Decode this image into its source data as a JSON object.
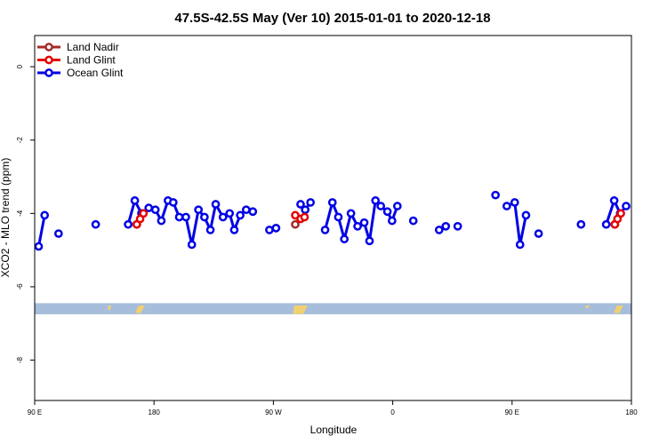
{
  "chart_data": {
    "type": "line",
    "title": "47.5S-42.5S May (Ver 10)   2015-01-01 to 2020-12-18",
    "xlabel": "Longitude",
    "ylabel": "XCO2 - MLO trend (ppm)",
    "xlim": [
      90,
      540
    ],
    "ylim": [
      -9.1,
      0.85
    ],
    "x_ticks": [
      {
        "value": 90,
        "label": "90 E"
      },
      {
        "value": 180,
        "label": "180"
      },
      {
        "value": 270,
        "label": "90 W"
      },
      {
        "value": 360,
        "label": "0"
      },
      {
        "value": 450,
        "label": "90 E"
      },
      {
        "value": 540,
        "label": "180"
      }
    ],
    "y_ticks": [
      {
        "value": 0,
        "label": "0"
      },
      {
        "value": -2,
        "label": "-2"
      },
      {
        "value": -4,
        "label": "-4"
      },
      {
        "value": -6,
        "label": "-6"
      },
      {
        "value": -8,
        "label": "-8"
      }
    ],
    "grid": false,
    "legend_position": "top-left",
    "land_band": {
      "y_range": [
        -6.45,
        -6.75
      ],
      "color": "#a6bddb",
      "land_color": "#f0d070"
    },
    "series": [
      {
        "name": "Land Nadir",
        "color": "#a52a2a",
        "segments": [
          [
            [
              167.0,
              -4.3
            ]
          ],
          [
            [
              286.5,
              -4.3
            ]
          ],
          [
            [
              527.5,
              -4.3
            ]
          ]
        ]
      },
      {
        "name": "Land Glint",
        "color": "#e60000",
        "segments": [
          [
            [
              167.0,
              -4.3
            ],
            [
              169.5,
              -4.15
            ],
            [
              172.0,
              -4.0
            ]
          ],
          [
            [
              286.5,
              -4.05
            ],
            [
              290.5,
              -4.15
            ],
            [
              293.5,
              -4.1
            ]
          ],
          [
            [
              527.5,
              -4.3
            ],
            [
              529.5,
              -4.15
            ],
            [
              532.0,
              -4.0
            ]
          ]
        ]
      },
      {
        "name": "Ocean Glint",
        "color": "#0000e6",
        "segments": [
          [
            [
              93.0,
              -4.9
            ],
            [
              97.5,
              -4.05
            ]
          ],
          [
            [
              108.0,
              -4.55
            ]
          ],
          [
            [
              136.0,
              -4.3
            ]
          ],
          [
            [
              160.5,
              -4.3
            ],
            [
              165.5,
              -3.65
            ],
            [
              170.5,
              -4.0
            ],
            [
              176.0,
              -3.85
            ],
            [
              181.0,
              -3.9
            ],
            [
              185.5,
              -4.2
            ],
            [
              190.5,
              -3.65
            ],
            [
              194.5,
              -3.7
            ],
            [
              199.0,
              -4.1
            ],
            [
              204.0,
              -4.1
            ],
            [
              208.5,
              -4.85
            ],
            [
              213.5,
              -3.9
            ],
            [
              218.0,
              -4.1
            ],
            [
              222.5,
              -4.45
            ],
            [
              226.5,
              -3.75
            ],
            [
              232.0,
              -4.1
            ],
            [
              237.0,
              -4.0
            ],
            [
              240.5,
              -4.45
            ],
            [
              245.0,
              -4.05
            ],
            [
              249.5,
              -3.9
            ],
            [
              254.5,
              -3.95
            ]
          ],
          [
            [
              267.0,
              -4.45
            ],
            [
              272.0,
              -4.4
            ]
          ],
          [
            [
              290.5,
              -3.75
            ],
            [
              294.0,
              -3.9
            ],
            [
              298.0,
              -3.7
            ]
          ],
          [
            [
              309.0,
              -4.45
            ],
            [
              314.5,
              -3.7
            ],
            [
              319.0,
              -4.1
            ],
            [
              323.5,
              -4.7
            ],
            [
              328.5,
              -4.0
            ],
            [
              333.5,
              -4.35
            ],
            [
              338.5,
              -4.25
            ],
            [
              342.5,
              -4.75
            ],
            [
              347.0,
              -3.65
            ],
            [
              351.0,
              -3.8
            ],
            [
              356.0,
              -3.95
            ],
            [
              359.5,
              -4.2
            ],
            [
              363.5,
              -3.8
            ]
          ],
          [
            [
              375.5,
              -4.2
            ]
          ],
          [
            [
              395.0,
              -4.45
            ],
            [
              400.0,
              -4.35
            ]
          ],
          [
            [
              409.0,
              -4.35
            ]
          ],
          [
            [
              437.5,
              -3.5
            ]
          ],
          [
            [
              446.0,
              -3.8
            ],
            [
              452.0,
              -3.7
            ],
            [
              456.0,
              -4.85
            ],
            [
              460.5,
              -4.05
            ]
          ],
          [
            [
              470.0,
              -4.55
            ]
          ],
          [
            [
              502.0,
              -4.3
            ]
          ],
          [
            [
              521.0,
              -4.3
            ],
            [
              527.0,
              -3.65
            ],
            [
              531.5,
              -4.0
            ],
            [
              536.0,
              -3.8
            ]
          ]
        ]
      }
    ]
  }
}
